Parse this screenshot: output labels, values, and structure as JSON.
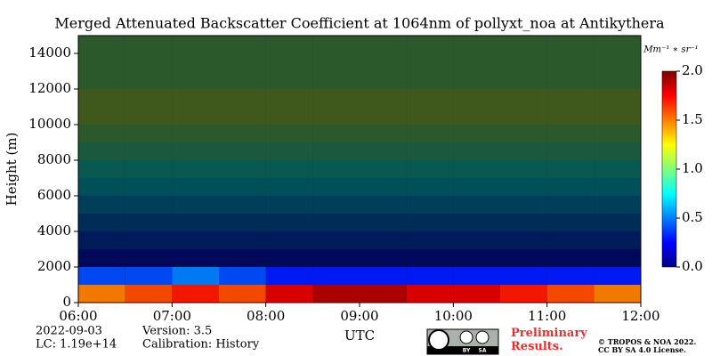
{
  "chart_data": {
    "type": "heatmap",
    "title": "Merged Attenuated Backscatter Coefficient at 1064nm of pollyxt_noa at Antikythera",
    "ylabel": "Height (m)",
    "xlabel": "UTC",
    "x": [
      "06:00",
      "06:30",
      "07:00",
      "07:30",
      "08:00",
      "08:30",
      "09:00",
      "09:30",
      "10:00",
      "10:30",
      "11:00",
      "11:30"
    ],
    "xlim": [
      "06:00",
      "12:00"
    ],
    "xticks": [
      "06:00",
      "07:00",
      "08:00",
      "09:00",
      "10:00",
      "11:00",
      "12:00"
    ],
    "y_bins": [
      0,
      1000,
      2000,
      3000,
      4000,
      5000,
      6000,
      7000,
      8000,
      9000,
      10000,
      11000,
      12000,
      13000,
      14000,
      15000
    ],
    "ylim": [
      0,
      15000
    ],
    "yticks": [
      0,
      2000,
      4000,
      6000,
      8000,
      10000,
      12000,
      14000
    ],
    "z": [
      [
        1.5,
        1.6,
        1.7,
        1.6,
        1.8,
        1.9,
        1.9,
        1.8,
        1.8,
        1.7,
        1.6,
        1.5
      ],
      [
        0.4,
        0.4,
        0.5,
        0.4,
        0.3,
        0.3,
        0.3,
        0.3,
        0.3,
        0.3,
        0.3,
        0.3
      ],
      [
        0.3,
        0.3,
        0.3,
        0.3,
        0.3,
        0.3,
        0.3,
        0.3,
        0.3,
        0.3,
        0.3,
        0.3
      ],
      [
        0.4,
        0.4,
        0.4,
        0.4,
        0.4,
        0.4,
        0.4,
        0.4,
        0.4,
        0.4,
        0.4,
        0.4
      ],
      [
        0.5,
        0.5,
        0.5,
        0.5,
        0.5,
        0.5,
        0.5,
        0.5,
        0.5,
        0.5,
        0.5,
        0.5
      ],
      [
        0.6,
        0.6,
        0.6,
        0.6,
        0.6,
        0.6,
        0.6,
        0.6,
        0.6,
        0.6,
        0.6,
        0.6
      ],
      [
        0.7,
        0.7,
        0.7,
        0.7,
        0.7,
        0.7,
        0.7,
        0.7,
        0.7,
        0.7,
        0.7,
        0.7
      ],
      [
        0.8,
        0.8,
        0.8,
        0.8,
        0.8,
        0.8,
        0.8,
        0.8,
        0.8,
        0.8,
        0.8,
        0.8
      ],
      [
        0.9,
        0.9,
        0.9,
        0.9,
        0.9,
        0.9,
        0.9,
        0.9,
        0.9,
        0.9,
        0.9,
        0.9
      ],
      [
        1.0,
        1.0,
        1.0,
        1.0,
        1.0,
        1.0,
        1.0,
        1.0,
        1.0,
        1.0,
        1.0,
        1.0
      ],
      [
        1.1,
        1.1,
        1.1,
        1.1,
        1.1,
        1.1,
        1.1,
        1.1,
        1.1,
        1.1,
        1.1,
        1.1
      ],
      [
        1.1,
        1.1,
        1.1,
        1.1,
        1.1,
        1.1,
        1.1,
        1.1,
        1.1,
        1.1,
        1.1,
        1.1
      ],
      [
        1.0,
        1.0,
        1.0,
        1.0,
        1.0,
        1.0,
        1.0,
        1.0,
        1.0,
        1.0,
        1.0,
        1.0
      ],
      [
        1.0,
        1.0,
        1.0,
        1.0,
        1.0,
        1.0,
        1.0,
        1.0,
        1.0,
        1.0,
        1.0,
        1.0
      ],
      [
        1.0,
        1.0,
        1.0,
        1.0,
        1.0,
        1.0,
        1.0,
        1.0,
        1.0,
        1.0,
        1.0,
        1.0
      ]
    ],
    "colorbar_label": "Mm⁻¹ ∗ sr⁻¹",
    "zlim": [
      0,
      2
    ],
    "zticks": [
      {
        "value": 0,
        "label": "0.0"
      },
      {
        "value": 0.5,
        "label": "0.5"
      },
      {
        "value": 1,
        "label": "1.0"
      },
      {
        "value": 1.5,
        "label": "1.5"
      },
      {
        "value": 2,
        "label": "2.0"
      }
    ],
    "colormap": [
      "#00007f",
      "#0000ff",
      "#007fff",
      "#00ffff",
      "#7fff7f",
      "#ffff00",
      "#ff7f00",
      "#ff0000",
      "#7f0000"
    ]
  },
  "footer": {
    "date": "2022-09-03",
    "lc": "LC: 1.19e+14",
    "version": "Version: 3.5",
    "calibration": "Calibration: History",
    "badge": [
      "BY",
      "SA"
    ],
    "notice": "Preliminary Results.",
    "copyright": "© TROPOS & NOA 2022.",
    "license": "CC BY SA 4.0 License."
  }
}
